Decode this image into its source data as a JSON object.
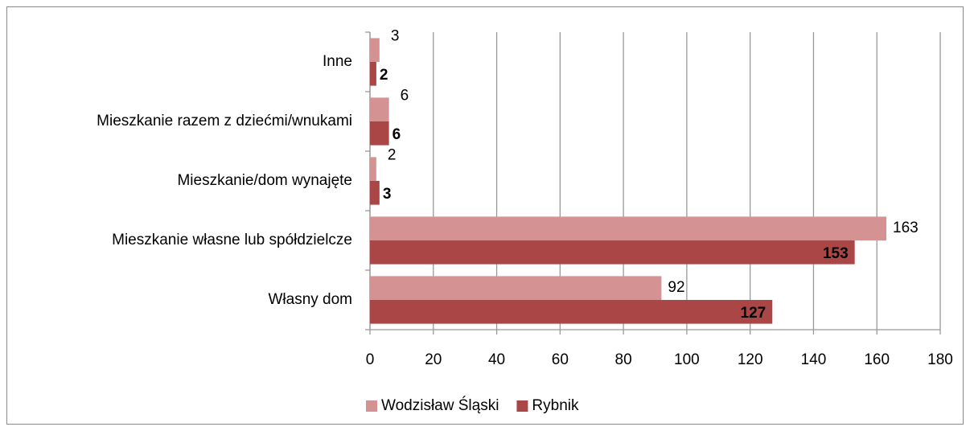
{
  "chart_data": {
    "type": "bar",
    "orientation": "horizontal",
    "categories": [
      "Inne",
      "Mieszkanie razem z dziećmi/wnukami",
      "Mieszkanie/dom wynajęte",
      "Mieszkanie własne lub spółdzielcze",
      "Własny dom"
    ],
    "series": [
      {
        "name": "Wodzisław Śląski",
        "color": "#d49392",
        "values": [
          3,
          6,
          2,
          163,
          92
        ]
      },
      {
        "name": "Rybnik",
        "color": "#aa4645",
        "values": [
          2,
          6,
          3,
          153,
          127
        ]
      }
    ],
    "xlim": [
      0,
      180
    ],
    "xticks": [
      0,
      20,
      40,
      60,
      80,
      100,
      120,
      140,
      160,
      180
    ],
    "grid": true,
    "legend": "bottom"
  }
}
